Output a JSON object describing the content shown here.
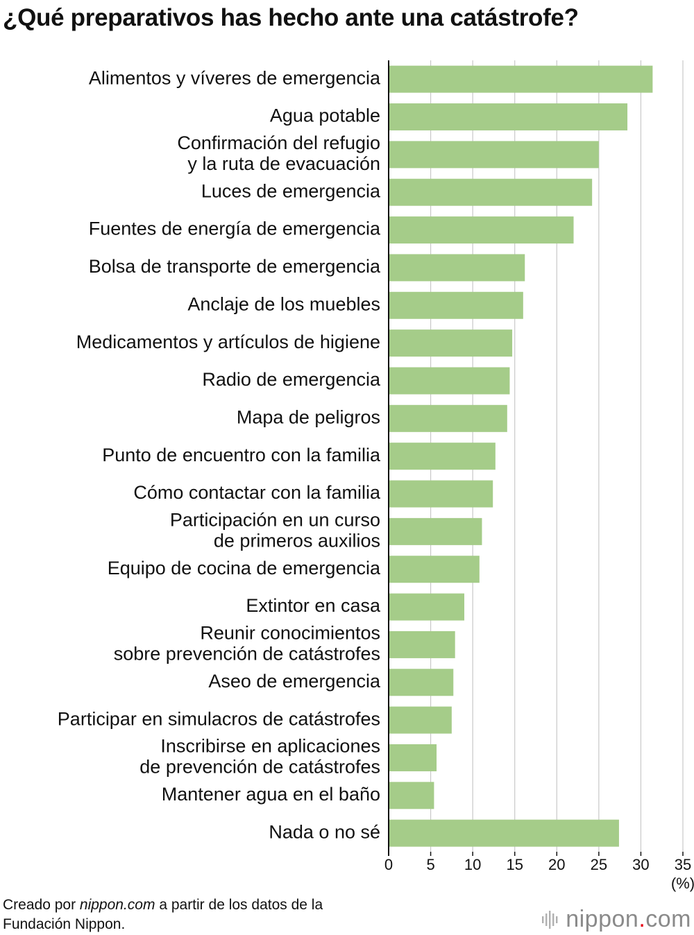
{
  "title": "¿Qué preparativos has hecho ante una catástrofe?",
  "chart_data": {
    "type": "bar",
    "orientation": "horizontal",
    "categories": [
      [
        "Alimentos y víveres de emergencia"
      ],
      [
        "Agua potable"
      ],
      [
        "Confirmación del refugio",
        "y la ruta de evacuación"
      ],
      [
        "Luces de emergencia"
      ],
      [
        "Fuentes de energía de emergencia"
      ],
      [
        "Bolsa de transporte de emergencia"
      ],
      [
        "Anclaje de los muebles"
      ],
      [
        "Medicamentos y artículos de higiene"
      ],
      [
        "Radio de emergencia"
      ],
      [
        "Mapa de peligros"
      ],
      [
        "Punto de encuentro con la familia"
      ],
      [
        "Cómo contactar con la familia"
      ],
      [
        "Participación en un curso",
        "de primeros auxilios"
      ],
      [
        "Equipo de cocina de emergencia"
      ],
      [
        "Extintor en casa"
      ],
      [
        "Reunir conocimientos",
        "sobre prevención de catástrofes"
      ],
      [
        "Aseo de emergencia"
      ],
      [
        "Participar en simulacros de catástrofes"
      ],
      [
        "Inscribirse en aplicaciones",
        "de prevención de catástrofes"
      ],
      [
        "Mantener agua en el baño"
      ],
      [
        "Nada o no sé"
      ]
    ],
    "values": [
      31.4,
      28.4,
      25.0,
      24.2,
      22.0,
      16.2,
      16.0,
      14.7,
      14.4,
      14.1,
      12.7,
      12.4,
      11.1,
      10.8,
      9.0,
      7.9,
      7.7,
      7.5,
      5.7,
      5.4,
      27.4
    ],
    "xlim": [
      0,
      35
    ],
    "xticks": [
      "0",
      "5",
      "10",
      "15",
      "20",
      "25",
      "30",
      "35"
    ],
    "xlabel": "(%)",
    "ylabel": "",
    "grid": true,
    "bar_color": "#a5cc89",
    "grid_color": "#c8c8c8"
  },
  "footer": {
    "credit_prefix": "Creado por ",
    "credit_site": "nippon.com",
    "credit_suffix": " a partir de los datos de la",
    "credit_line2": "Fundación Nippon.",
    "brand_name": "nippon",
    "brand_dot": ".",
    "brand_tld": "com",
    "brand_icon": "sound-wave-icon"
  }
}
